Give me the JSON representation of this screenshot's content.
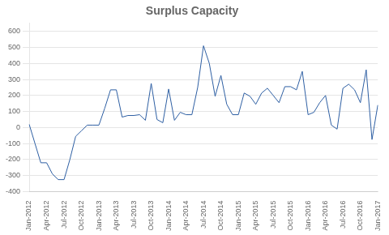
{
  "chart_data": {
    "type": "line",
    "title": "Surplus Capacity",
    "categories": [
      "Jan-2012",
      null,
      null,
      "Apr-2012",
      null,
      null,
      "Jul-2012",
      null,
      null,
      "Oct-2012",
      null,
      null,
      "Jan-2013",
      null,
      null,
      "Apr-2013",
      null,
      null,
      "Jul-2013",
      null,
      null,
      "Oct-2013",
      null,
      null,
      "Jan-2014",
      null,
      null,
      "Apr-2014",
      null,
      null,
      "Jul-2014",
      null,
      null,
      "Oct-2014",
      null,
      null,
      "Jan-2015",
      null,
      null,
      "Apr-2015",
      null,
      null,
      "Jul-2015",
      null,
      null,
      "Oct-2015",
      null,
      null,
      "Jan-2016",
      null,
      null,
      "Apr-2016",
      null,
      null,
      "Jul-2016",
      null,
      null,
      "Oct-2016",
      null,
      null,
      "Jan-2017"
    ],
    "values": [
      20,
      -100,
      -220,
      -220,
      -290,
      -325,
      -325,
      -200,
      -55,
      -20,
      15,
      15,
      15,
      120,
      235,
      235,
      65,
      75,
      75,
      80,
      45,
      275,
      50,
      30,
      240,
      45,
      95,
      80,
      80,
      250,
      510,
      400,
      195,
      325,
      145,
      80,
      80,
      215,
      195,
      145,
      215,
      245,
      200,
      155,
      255,
      255,
      235,
      350,
      80,
      95,
      155,
      200,
      15,
      -10,
      245,
      270,
      235,
      155,
      360,
      -75,
      140
    ],
    "color": "#2E5FA3",
    "ylim": [
      -400,
      650
    ],
    "yticks": [
      -400,
      -300,
      -200,
      -100,
      0,
      100,
      200,
      300,
      400,
      500,
      600
    ],
    "grid": true
  }
}
